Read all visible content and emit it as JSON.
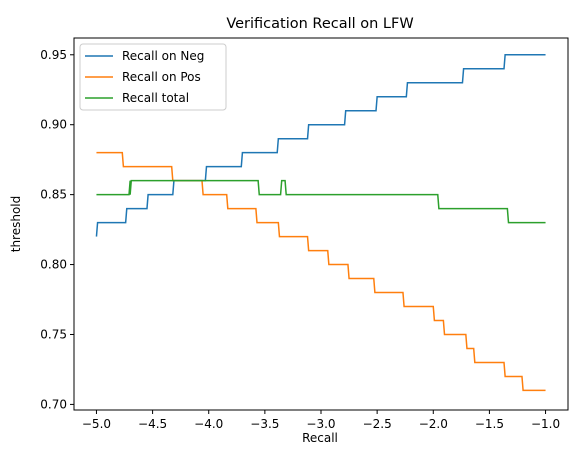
{
  "chart_data": {
    "type": "line",
    "title": "Verification Recall on LFW",
    "xlabel": "Recall",
    "ylabel": "threshold",
    "xlim": [
      -5.2,
      -0.8
    ],
    "ylim": [
      0.696,
      0.962
    ],
    "xticks": [
      -5.0,
      -4.5,
      -4.0,
      -3.5,
      -3.0,
      -2.5,
      -2.0,
      -1.5,
      -1.0
    ],
    "xtick_labels": [
      "−5.0",
      "−4.5",
      "−4.0",
      "−3.5",
      "−3.0",
      "−2.5",
      "−2.0",
      "−1.5",
      "−1.0"
    ],
    "yticks": [
      0.7,
      0.75,
      0.8,
      0.85,
      0.9,
      0.95
    ],
    "ytick_labels": [
      "0.70",
      "0.75",
      "0.80",
      "0.85",
      "0.90",
      "0.95"
    ],
    "grid": false,
    "legend_position": "top-left",
    "series": [
      {
        "name": "Recall on Neg",
        "color": "#1f77b4",
        "x": [
          -5.0,
          -4.99,
          -4.87,
          -4.86,
          -4.74,
          -4.73,
          -4.55,
          -4.54,
          -4.32,
          -4.31,
          -4.03,
          -4.02,
          -3.71,
          -3.7,
          -3.39,
          -3.38,
          -3.12,
          -3.11,
          -2.79,
          -2.78,
          -2.51,
          -2.5,
          -2.24,
          -2.23,
          -1.98,
          -1.97,
          -1.74,
          -1.73,
          -1.37,
          -1.36,
          -1.0
        ],
        "y": [
          0.82,
          0.83,
          0.83,
          0.83,
          0.83,
          0.84,
          0.84,
          0.85,
          0.85,
          0.86,
          0.86,
          0.87,
          0.87,
          0.88,
          0.88,
          0.89,
          0.89,
          0.9,
          0.9,
          0.91,
          0.91,
          0.92,
          0.92,
          0.93,
          0.93,
          0.93,
          0.93,
          0.94,
          0.94,
          0.95,
          0.95
        ]
      },
      {
        "name": "Recall on Pos",
        "color": "#ff7f0e",
        "x": [
          -5.0,
          -4.77,
          -4.76,
          -4.33,
          -4.32,
          -4.06,
          -4.05,
          -3.84,
          -3.83,
          -3.58,
          -3.57,
          -3.38,
          -3.37,
          -3.12,
          -3.11,
          -2.94,
          -2.93,
          -2.76,
          -2.75,
          -2.53,
          -2.52,
          -2.27,
          -2.26,
          -2.0,
          -1.99,
          -1.91,
          -1.9,
          -1.71,
          -1.7,
          -1.64,
          -1.63,
          -1.55,
          -1.54,
          -1.37,
          -1.36,
          -1.21,
          -1.2,
          -1.0
        ],
        "y": [
          0.88,
          0.88,
          0.87,
          0.87,
          0.86,
          0.86,
          0.85,
          0.85,
          0.84,
          0.84,
          0.83,
          0.83,
          0.82,
          0.82,
          0.81,
          0.81,
          0.8,
          0.8,
          0.79,
          0.79,
          0.78,
          0.78,
          0.77,
          0.77,
          0.76,
          0.76,
          0.75,
          0.75,
          0.74,
          0.74,
          0.73,
          0.73,
          0.73,
          0.73,
          0.72,
          0.72,
          0.71,
          0.71
        ]
      },
      {
        "name": "Recall total",
        "color": "#2ca02c",
        "x": [
          -5.0,
          -4.71,
          -4.7,
          -4.7,
          -4.69,
          -3.56,
          -3.55,
          -3.36,
          -3.35,
          -3.32,
          -3.31,
          -1.96,
          -1.95,
          -1.35,
          -1.34,
          -1.33,
          -1.32,
          -1.0
        ],
        "y": [
          0.85,
          0.85,
          0.86,
          0.85,
          0.86,
          0.86,
          0.85,
          0.85,
          0.86,
          0.86,
          0.85,
          0.85,
          0.84,
          0.84,
          0.84,
          0.83,
          0.83,
          0.83
        ]
      }
    ]
  }
}
